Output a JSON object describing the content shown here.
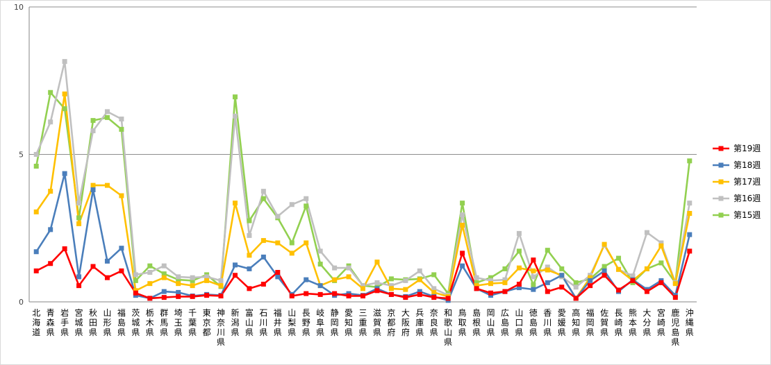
{
  "chart_data": {
    "type": "line",
    "title": "",
    "xlabel": "",
    "ylabel": "",
    "ylim": [
      0,
      10
    ],
    "yticks": [
      0,
      5,
      10
    ],
    "grid": "horizontal",
    "legend_position": "right",
    "categories": [
      "北海道",
      "青森県",
      "岩手県",
      "宮城県",
      "秋田県",
      "山形県",
      "福島県",
      "茨城県",
      "栃木県",
      "群馬県",
      "埼玉県",
      "千葉県",
      "東京都",
      "神奈川県",
      "新潟県",
      "富山県",
      "石川県",
      "福井県",
      "山梨県",
      "長野県",
      "岐阜県",
      "静岡県",
      "愛知県",
      "三重県",
      "滋賀県",
      "京都府",
      "大阪府",
      "兵庫県",
      "奈良県",
      "和歌山県",
      "鳥取県",
      "島根県",
      "岡山県",
      "広島県",
      "山口県",
      "徳島県",
      "香川県",
      "愛媛県",
      "高知県",
      "福岡県",
      "佐賀県",
      "長崎県",
      "熊本県",
      "大分県",
      "宮崎県",
      "鹿児島県",
      "沖縄県"
    ],
    "series": [
      {
        "name": "第19週",
        "color": "#ff0000",
        "values": [
          1.05,
          1.3,
          1.8,
          0.55,
          1.2,
          0.82,
          1.05,
          0.3,
          0.12,
          0.15,
          0.18,
          0.18,
          0.22,
          0.2,
          0.9,
          0.45,
          0.6,
          1.0,
          0.2,
          0.28,
          0.25,
          0.28,
          0.2,
          0.2,
          0.38,
          0.25,
          0.15,
          0.25,
          0.15,
          0.12,
          1.65,
          0.45,
          0.3,
          0.35,
          0.6,
          1.42,
          0.35,
          0.5,
          0.12,
          0.55,
          0.9,
          0.4,
          0.72,
          0.35,
          0.65,
          0.15,
          1.72
        ]
      },
      {
        "name": "第18週",
        "color": "#4a7ebb",
        "values": [
          1.7,
          2.45,
          4.35,
          0.85,
          3.8,
          1.38,
          1.82,
          0.22,
          0.12,
          0.35,
          0.32,
          0.2,
          0.25,
          0.22,
          1.25,
          1.12,
          1.52,
          0.85,
          0.25,
          0.75,
          0.55,
          0.22,
          0.28,
          0.22,
          0.45,
          0.25,
          0.18,
          0.35,
          0.18,
          0.05,
          1.22,
          0.45,
          0.22,
          0.35,
          0.48,
          0.42,
          0.65,
          0.9,
          0.12,
          0.72,
          1.05,
          0.35,
          0.75,
          0.42,
          0.72,
          0.22,
          2.28
        ]
      },
      {
        "name": "第17週",
        "color": "#ffc000",
        "values": [
          3.05,
          3.75,
          7.05,
          2.65,
          3.95,
          3.95,
          3.6,
          0.38,
          0.62,
          0.82,
          0.62,
          0.55,
          0.72,
          0.55,
          3.35,
          1.58,
          2.08,
          2.0,
          1.65,
          2.0,
          0.55,
          0.75,
          0.85,
          0.45,
          1.35,
          0.45,
          0.42,
          0.75,
          0.32,
          0.18,
          2.6,
          0.55,
          0.62,
          0.65,
          1.15,
          1.05,
          1.08,
          0.9,
          0.12,
          0.82,
          1.95,
          1.1,
          0.72,
          1.12,
          1.9,
          0.62,
          3.0
        ]
      },
      {
        "name": "第16週",
        "color": "#c0c0c0",
        "values": [
          5.0,
          6.1,
          8.15,
          3.35,
          5.8,
          6.45,
          6.2,
          0.92,
          1.0,
          1.22,
          0.85,
          0.82,
          0.85,
          0.72,
          6.3,
          2.25,
          3.75,
          2.9,
          3.3,
          3.5,
          1.72,
          1.15,
          1.15,
          0.55,
          0.65,
          0.55,
          0.72,
          1.05,
          0.45,
          0.22,
          2.95,
          0.82,
          0.72,
          0.75,
          2.32,
          0.85,
          1.18,
          0.85,
          0.5,
          0.9,
          1.92,
          1.1,
          0.88,
          2.35,
          2.0,
          0.65,
          3.35
        ]
      },
      {
        "name": "第15週",
        "color": "#92d050",
        "values": [
          4.6,
          7.1,
          6.55,
          2.85,
          6.15,
          6.25,
          5.85,
          0.72,
          1.22,
          0.95,
          0.75,
          0.72,
          0.92,
          0.52,
          6.95,
          2.75,
          3.5,
          2.85,
          2.0,
          3.25,
          1.28,
          0.72,
          1.22,
          0.55,
          0.5,
          0.78,
          0.75,
          0.78,
          0.92,
          0.28,
          3.35,
          0.65,
          0.82,
          1.12,
          1.72,
          0.58,
          1.75,
          1.12,
          0.65,
          0.78,
          1.2,
          1.48,
          0.65,
          1.12,
          1.32,
          0.65,
          4.78
        ]
      }
    ]
  }
}
